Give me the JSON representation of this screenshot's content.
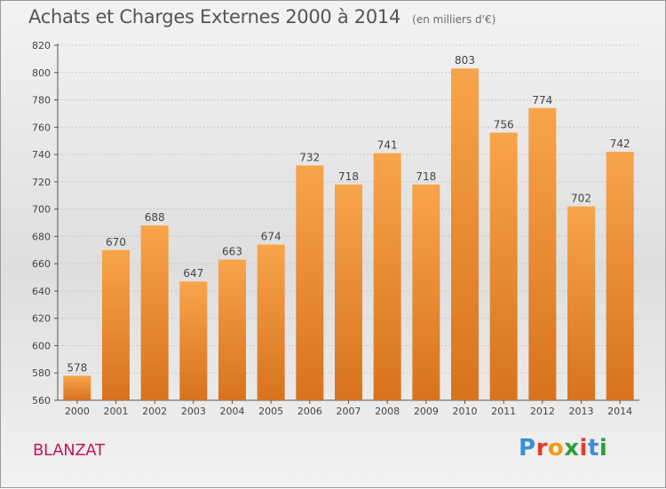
{
  "title": "Achats et Charges Externes 2000 à 2014",
  "subtitle": "(en milliers d'€)",
  "commune": "BLANZAT",
  "logo": {
    "text": "Proxiti",
    "letters": [
      {
        "char": "P",
        "color": "#3a8fd8"
      },
      {
        "char": "r",
        "color": "#e5392b"
      },
      {
        "char": "o",
        "color": "#f39c12"
      },
      {
        "char": "x",
        "color": "#2e9e3a"
      },
      {
        "char": "i",
        "color": "#e5392b"
      },
      {
        "char": "t",
        "color": "#3a8fd8"
      },
      {
        "char": "i",
        "color": "#2e9e3a"
      }
    ]
  },
  "colors": {
    "bar_light": "#f8a44b",
    "bar_dark": "#d8731d",
    "grid": "#c8c8c8",
    "axis": "#555555"
  },
  "chart_data": {
    "type": "bar",
    "categories": [
      "2000",
      "2001",
      "2002",
      "2003",
      "2004",
      "2005",
      "2006",
      "2007",
      "2008",
      "2009",
      "2010",
      "2011",
      "2012",
      "2013",
      "2014"
    ],
    "values": [
      578,
      670,
      688,
      647,
      663,
      674,
      732,
      718,
      741,
      718,
      803,
      756,
      774,
      702,
      742
    ],
    "yticks": [
      560,
      580,
      600,
      620,
      640,
      660,
      680,
      700,
      720,
      740,
      760,
      780,
      800,
      820
    ],
    "ylim": [
      560,
      820
    ],
    "grid": true,
    "legend": "none"
  }
}
